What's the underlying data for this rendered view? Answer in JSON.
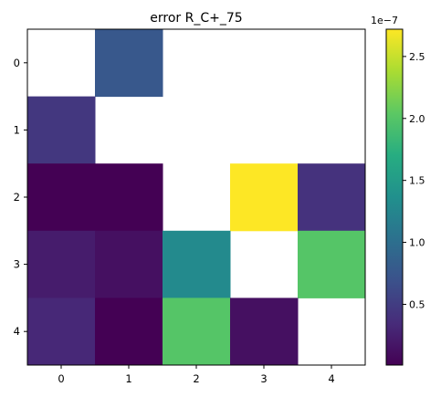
{
  "chart_data": {
    "type": "heatmap",
    "title": "error R_C+_75",
    "x_tick_labels": [
      "0",
      "1",
      "2",
      "3",
      "4"
    ],
    "y_tick_labels": [
      "0",
      "1",
      "2",
      "3",
      "4"
    ],
    "values": [
      [
        null,
        7.6e-08,
        null,
        null,
        null
      ],
      [
        4.5e-08,
        null,
        null,
        null,
        null
      ],
      [
        1e-09,
        1e-09,
        null,
        2.72e-07,
        4e-08
      ],
      [
        2.2e-08,
        1.3e-08,
        1.3e-07,
        null,
        2e-07
      ],
      [
        3.2e-08,
        1e-09,
        2e-07,
        1.3e-08,
        null
      ]
    ],
    "colorbar": {
      "colormap": "viridis",
      "min": 1e-09,
      "max": 2.72e-07,
      "ticks": [
        5e-08,
        1e-07,
        1.5e-07,
        2e-07,
        2.5e-07
      ],
      "tick_labels": [
        "0.5",
        "1.0",
        "1.5",
        "2.0",
        "2.5"
      ],
      "exponent_label": "1e−7"
    }
  }
}
